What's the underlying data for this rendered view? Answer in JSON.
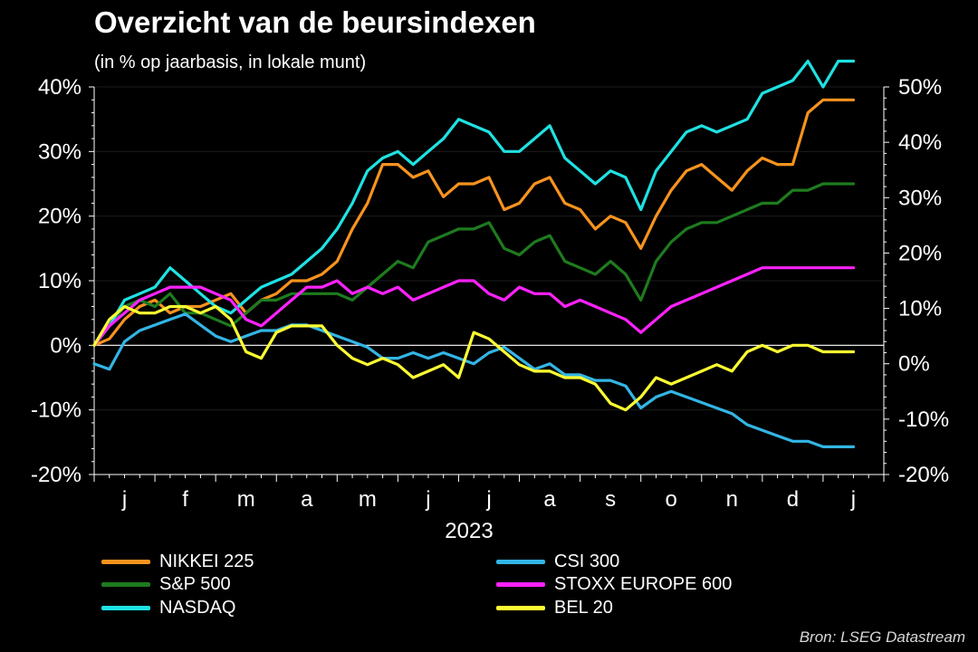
{
  "title": "Overzicht van de beursindexen",
  "subtitle": "(in % op jaarbasis, in lokale munt)",
  "source": "Bron: LSEG Datastream",
  "chart_data": {
    "type": "line",
    "title": "Overzicht van de beursindexen",
    "subtitle": "(in % op jaarbasis, in lokale munt)",
    "xlabel": "2023",
    "x_tick_labels": [
      "j",
      "f",
      "m",
      "a",
      "m",
      "j",
      "j",
      "a",
      "s",
      "o",
      "n",
      "d",
      "j"
    ],
    "x_range": [
      0,
      13
    ],
    "ylim_left": [
      -20,
      40
    ],
    "ylim_right": [
      -20,
      50
    ],
    "y_ticks_left": [
      -20,
      -10,
      0,
      10,
      20,
      30,
      40
    ],
    "y_tick_labels_left": [
      "-20%",
      "-10%",
      "0%",
      "10%",
      "20%",
      "30%",
      "40%"
    ],
    "y_ticks_right": [
      -20,
      -10,
      0,
      10,
      20,
      30,
      40,
      50
    ],
    "y_tick_labels_right": [
      "-20%",
      "-10%",
      "0%",
      "10%",
      "20%",
      "30%",
      "40%",
      "50%"
    ],
    "grid": true,
    "legend_position": "bottom",
    "series": [
      {
        "name": "NIKKEI 225",
        "color": "#F7931E",
        "axis": "left",
        "x": [
          0,
          0.25,
          0.5,
          0.75,
          1,
          1.25,
          1.5,
          1.75,
          2,
          2.25,
          2.5,
          2.75,
          3,
          3.25,
          3.5,
          3.75,
          4,
          4.25,
          4.5,
          4.75,
          5,
          5.25,
          5.5,
          5.75,
          6,
          6.25,
          6.5,
          6.75,
          7,
          7.25,
          7.5,
          7.75,
          8,
          8.25,
          8.5,
          8.75,
          9,
          9.25,
          9.5,
          9.75,
          10,
          10.25,
          10.5,
          10.75,
          11,
          11.25,
          11.5,
          11.75,
          12,
          12.25,
          12.5
        ],
        "values": [
          0,
          1,
          4,
          6,
          7,
          5,
          6,
          6,
          7,
          8,
          5,
          7,
          8,
          10,
          10,
          11,
          13,
          18,
          22,
          28,
          28,
          26,
          27,
          23,
          25,
          25,
          26,
          21,
          22,
          25,
          26,
          22,
          21,
          18,
          20,
          19,
          15,
          20,
          24,
          27,
          28,
          26,
          24,
          27,
          29,
          28,
          28,
          36,
          38,
          38,
          38
        ]
      },
      {
        "name": "S&P 500",
        "color": "#1E7B1E",
        "axis": "left",
        "x": [
          0,
          0.25,
          0.5,
          0.75,
          1,
          1.25,
          1.5,
          1.75,
          2,
          2.25,
          2.5,
          2.75,
          3,
          3.25,
          3.5,
          3.75,
          4,
          4.25,
          4.5,
          4.75,
          5,
          5.25,
          5.5,
          5.75,
          6,
          6.25,
          6.5,
          6.75,
          7,
          7.25,
          7.5,
          7.75,
          8,
          8.25,
          8.5,
          8.75,
          9,
          9.25,
          9.5,
          9.75,
          10,
          10.25,
          10.5,
          10.75,
          11,
          11.25,
          11.5,
          11.75,
          12,
          12.25,
          12.5
        ],
        "values": [
          0,
          3,
          6,
          7,
          6,
          8,
          5,
          5,
          4,
          3,
          5,
          7,
          7,
          8,
          8,
          8,
          8,
          7,
          9,
          11,
          13,
          12,
          16,
          17,
          18,
          18,
          19,
          15,
          14,
          16,
          17,
          13,
          12,
          11,
          13,
          11,
          7,
          13,
          16,
          18,
          19,
          19,
          20,
          21,
          22,
          22,
          24,
          24,
          25,
          25,
          25
        ]
      },
      {
        "name": "NASDAQ",
        "color": "#1FE2E2",
        "axis": "left",
        "x": [
          0,
          0.25,
          0.5,
          0.75,
          1,
          1.25,
          1.5,
          1.75,
          2,
          2.25,
          2.5,
          2.75,
          3,
          3.25,
          3.5,
          3.75,
          4,
          4.25,
          4.5,
          4.75,
          5,
          5.25,
          5.5,
          5.75,
          6,
          6.25,
          6.5,
          6.75,
          7,
          7.25,
          7.5,
          7.75,
          8,
          8.25,
          8.5,
          8.75,
          9,
          9.25,
          9.5,
          9.75,
          10,
          10.25,
          10.5,
          10.75,
          11,
          11.25,
          11.5,
          11.75,
          12,
          12.25,
          12.5
        ],
        "values": [
          0,
          3,
          7,
          8,
          9,
          12,
          10,
          8,
          6,
          5,
          7,
          9,
          10,
          11,
          13,
          15,
          18,
          22,
          27,
          29,
          30,
          28,
          30,
          32,
          35,
          34,
          33,
          30,
          30,
          32,
          34,
          29,
          27,
          25,
          27,
          26,
          21,
          27,
          30,
          33,
          34,
          33,
          34,
          35,
          39,
          40,
          41,
          44,
          40,
          44,
          44
        ]
      },
      {
        "name": "CSI 300",
        "color": "#33B5E5",
        "axis": "right",
        "x": [
          0,
          0.25,
          0.5,
          0.75,
          1,
          1.25,
          1.5,
          1.75,
          2,
          2.25,
          2.5,
          2.75,
          3,
          3.25,
          3.5,
          3.75,
          4,
          4.25,
          4.5,
          4.75,
          5,
          5.25,
          5.5,
          5.75,
          6,
          6.25,
          6.5,
          6.75,
          7,
          7.25,
          7.5,
          7.75,
          8,
          8.25,
          8.5,
          8.75,
          9,
          9.25,
          9.5,
          9.75,
          10,
          10.25,
          10.5,
          10.75,
          11,
          11.25,
          11.5,
          11.75,
          12,
          12.25,
          12.5
        ],
        "values": [
          0,
          -1,
          4,
          6,
          7,
          8,
          9,
          7,
          5,
          4,
          5,
          6,
          6,
          7,
          7,
          6,
          5,
          4,
          3,
          1,
          1,
          2,
          1,
          2,
          1,
          0,
          2,
          3,
          1,
          -1,
          0,
          -2,
          -2,
          -3,
          -3,
          -4,
          -8,
          -6,
          -5,
          -6,
          -7,
          -8,
          -9,
          -11,
          -12,
          -13,
          -14,
          -14,
          -15,
          -15,
          -15
        ]
      },
      {
        "name": "STOXX EUROPE 600",
        "color": "#FF22FF",
        "axis": "left",
        "x": [
          0,
          0.25,
          0.5,
          0.75,
          1,
          1.25,
          1.5,
          1.75,
          2,
          2.25,
          2.5,
          2.75,
          3,
          3.25,
          3.5,
          3.75,
          4,
          4.25,
          4.5,
          4.75,
          5,
          5.25,
          5.5,
          5.75,
          6,
          6.25,
          6.5,
          6.75,
          7,
          7.25,
          7.5,
          7.75,
          8,
          8.25,
          8.5,
          8.75,
          9,
          9.25,
          9.5,
          9.75,
          10,
          10.25,
          10.5,
          10.75,
          11,
          11.25,
          11.5,
          11.75,
          12,
          12.25,
          12.5
        ],
        "values": [
          0,
          3,
          5,
          7,
          8,
          9,
          9,
          9,
          8,
          7,
          4,
          3,
          5,
          7,
          9,
          9,
          10,
          8,
          9,
          8,
          9,
          7,
          8,
          9,
          10,
          10,
          8,
          7,
          9,
          8,
          8,
          6,
          7,
          6,
          5,
          4,
          2,
          4,
          6,
          7,
          8,
          9,
          10,
          11,
          12,
          12,
          12,
          12,
          12,
          12,
          12
        ]
      },
      {
        "name": "BEL 20",
        "color": "#FFFF33",
        "axis": "left",
        "x": [
          0,
          0.25,
          0.5,
          0.75,
          1,
          1.25,
          1.5,
          1.75,
          2,
          2.25,
          2.5,
          2.75,
          3,
          3.25,
          3.5,
          3.75,
          4,
          4.25,
          4.5,
          4.75,
          5,
          5.25,
          5.5,
          5.75,
          6,
          6.25,
          6.5,
          6.75,
          7,
          7.25,
          7.5,
          7.75,
          8,
          8.25,
          8.5,
          8.75,
          9,
          9.25,
          9.5,
          9.75,
          10,
          10.25,
          10.5,
          10.75,
          11,
          11.25,
          11.5,
          11.75,
          12,
          12.25,
          12.5
        ],
        "values": [
          0,
          4,
          6,
          5,
          5,
          6,
          6,
          5,
          6,
          4,
          -1,
          -2,
          2,
          3,
          3,
          3,
          0,
          -2,
          -3,
          -2,
          -3,
          -5,
          -4,
          -3,
          -5,
          2,
          1,
          -1,
          -3,
          -4,
          -4,
          -5,
          -5,
          -6,
          -9,
          -10,
          -8,
          -5,
          -6,
          -5,
          -4,
          -3,
          -4,
          -1,
          0,
          -1,
          0,
          0,
          -1,
          -1,
          -1
        ]
      }
    ]
  }
}
